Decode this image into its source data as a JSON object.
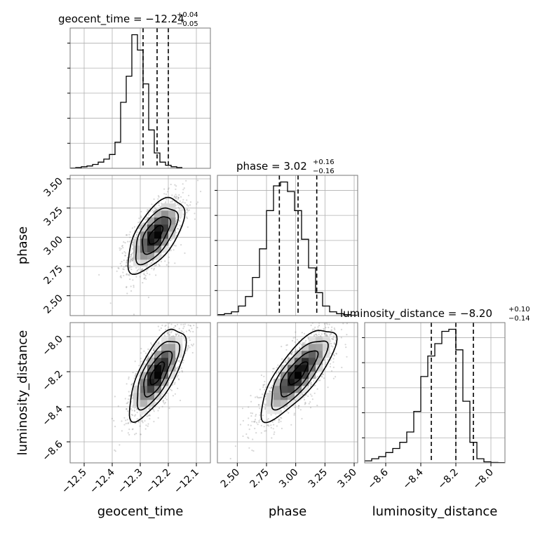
{
  "chart_data": {
    "type": "corner",
    "grid": true,
    "parameters": [
      {
        "name": "geocent_time",
        "median": -12.24,
        "plus": "+0.04",
        "minus": "−0.05",
        "title_main": "geocent_time = −12.24",
        "range": [
          -12.55,
          -12.05
        ],
        "ticks": [
          -12.5,
          -12.4,
          -12.3,
          -12.2,
          -12.1
        ],
        "tick_labels": [
          "−12.5",
          "−12.4",
          "−12.3",
          "−12.2",
          "−12.1"
        ],
        "quantile_lines": [
          -12.29,
          -12.24,
          -12.2
        ]
      },
      {
        "name": "phase",
        "median": 3.02,
        "plus": "+0.16",
        "minus": "−0.16",
        "title_main": "phase = 3.02",
        "range": [
          2.33,
          3.53
        ],
        "ticks": [
          2.5,
          2.75,
          3.0,
          3.25,
          3.5
        ],
        "tick_labels": [
          "2.50",
          "2.75",
          "3.00",
          "3.25",
          "3.50"
        ],
        "quantile_lines": [
          2.86,
          3.02,
          3.18
        ]
      },
      {
        "name": "luminosity_distance",
        "median": -8.2,
        "plus": "+0.10",
        "minus": "−0.14",
        "title_main": "luminosity_distance = −8.20",
        "range": [
          -8.72,
          -7.92
        ],
        "ticks": [
          -8.6,
          -8.4,
          -8.2,
          -8.0
        ],
        "tick_labels": [
          "−8.6",
          "−8.4",
          "−8.2",
          "−8.0"
        ],
        "quantile_lines": [
          -8.34,
          -8.2,
          -8.1
        ]
      }
    ],
    "histograms": [
      {
        "param": "geocent_time",
        "bin_edges_start": -12.55,
        "bin_width": 0.02,
        "counts": [
          0.2,
          0.5,
          1,
          1.5,
          2.5,
          4,
          6,
          9,
          17,
          43,
          60,
          87,
          77,
          55,
          25,
          10,
          4,
          2,
          1,
          0.5
        ]
      },
      {
        "param": "phase",
        "bin_edges_start": 2.33,
        "bin_width": 0.06,
        "counts": [
          0.5,
          1,
          2,
          5,
          10,
          20,
          35,
          55,
          68,
          70,
          65,
          55,
          40,
          25,
          12,
          5,
          2,
          1,
          0.5,
          0.2
        ]
      },
      {
        "param": "luminosity_distance",
        "bin_edges_start": -8.72,
        "bin_width": 0.04,
        "counts": [
          1,
          2,
          3,
          5,
          7,
          10,
          15,
          25,
          42,
          52,
          58,
          64,
          65,
          55,
          30,
          10,
          2,
          0.5,
          0.2,
          0.1
        ]
      }
    ],
    "joint": [
      {
        "x": "geocent_time",
        "y": "phase",
        "center": [
          -12.245,
          3.02
        ],
        "sd": [
          0.05,
          0.16
        ],
        "corr": 0.62
      },
      {
        "x": "geocent_time",
        "y": "luminosity_distance",
        "center": [
          -12.24,
          -8.21
        ],
        "sd": [
          0.05,
          0.13
        ],
        "corr": 0.72
      },
      {
        "x": "phase",
        "y": "luminosity_distance",
        "center": [
          3.02,
          -8.21
        ],
        "sd": [
          0.16,
          0.13
        ],
        "corr": 0.78
      }
    ]
  }
}
